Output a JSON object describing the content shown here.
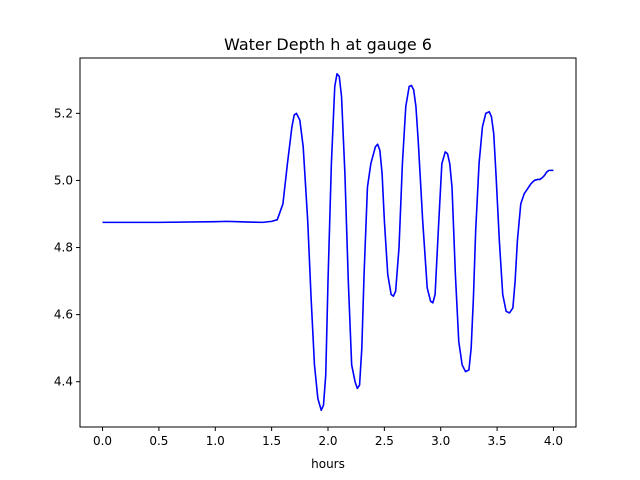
{
  "chart_data": {
    "type": "line",
    "title": "Water Depth h at gauge 6",
    "xlabel": "hours",
    "ylabel": "",
    "xlim": [
      -0.2,
      4.2
    ],
    "ylim": [
      4.265,
      5.365
    ],
    "xticks": [
      0.0,
      0.5,
      1.0,
      1.5,
      2.0,
      2.5,
      3.0,
      3.5,
      4.0
    ],
    "xtick_labels": [
      "0.0",
      "0.5",
      "1.0",
      "1.5",
      "2.0",
      "2.5",
      "3.0",
      "3.5",
      "4.0"
    ],
    "yticks": [
      4.4,
      4.6,
      4.8,
      5.0,
      5.2
    ],
    "ytick_labels": [
      "4.4",
      "4.6",
      "4.8",
      "5.0",
      "5.2"
    ],
    "grid": false,
    "series": [
      {
        "color": "#0000ff",
        "x": [
          0.0,
          0.5,
          1.0,
          1.1,
          1.2,
          1.3,
          1.42,
          1.5,
          1.55,
          1.6,
          1.64,
          1.68,
          1.7,
          1.72,
          1.75,
          1.78,
          1.82,
          1.85,
          1.88,
          1.91,
          1.94,
          1.96,
          1.98,
          2.0,
          2.03,
          2.06,
          2.08,
          2.1,
          2.12,
          2.15,
          2.18,
          2.21,
          2.24,
          2.26,
          2.28,
          2.3,
          2.32,
          2.35,
          2.38,
          2.42,
          2.44,
          2.46,
          2.48,
          2.5,
          2.53,
          2.56,
          2.58,
          2.6,
          2.63,
          2.66,
          2.69,
          2.72,
          2.74,
          2.76,
          2.78,
          2.8,
          2.84,
          2.88,
          2.91,
          2.93,
          2.95,
          2.98,
          3.01,
          3.04,
          3.06,
          3.08,
          3.1,
          3.13,
          3.16,
          3.19,
          3.22,
          3.25,
          3.27,
          3.29,
          3.31,
          3.34,
          3.37,
          3.4,
          3.43,
          3.45,
          3.47,
          3.49,
          3.52,
          3.55,
          3.58,
          3.61,
          3.64,
          3.66,
          3.68,
          3.71,
          3.74,
          3.77,
          3.8,
          3.83,
          3.86,
          3.88,
          3.9,
          3.92,
          3.94,
          3.96,
          3.98,
          4.0
        ],
        "y": [
          4.875,
          4.875,
          4.877,
          4.878,
          4.877,
          4.876,
          4.875,
          4.878,
          4.883,
          4.93,
          5.05,
          5.16,
          5.195,
          5.2,
          5.18,
          5.1,
          4.88,
          4.65,
          4.45,
          4.35,
          4.315,
          4.33,
          4.42,
          4.7,
          5.05,
          5.28,
          5.318,
          5.31,
          5.25,
          5.02,
          4.7,
          4.45,
          4.4,
          4.38,
          4.39,
          4.5,
          4.72,
          4.98,
          5.05,
          5.1,
          5.108,
          5.09,
          5.02,
          4.88,
          4.72,
          4.66,
          4.655,
          4.67,
          4.8,
          5.05,
          5.22,
          5.28,
          5.283,
          5.27,
          5.22,
          5.12,
          4.88,
          4.68,
          4.64,
          4.635,
          4.66,
          4.86,
          5.05,
          5.085,
          5.08,
          5.05,
          4.98,
          4.72,
          4.52,
          4.45,
          4.43,
          4.435,
          4.5,
          4.65,
          4.85,
          5.05,
          5.16,
          5.2,
          5.205,
          5.19,
          5.14,
          5.02,
          4.82,
          4.66,
          4.61,
          4.605,
          4.62,
          4.7,
          4.82,
          4.93,
          4.96,
          4.975,
          4.99,
          5.0,
          5.003,
          5.003,
          5.008,
          5.015,
          5.025,
          5.03,
          5.03,
          5.03
        ]
      }
    ]
  }
}
